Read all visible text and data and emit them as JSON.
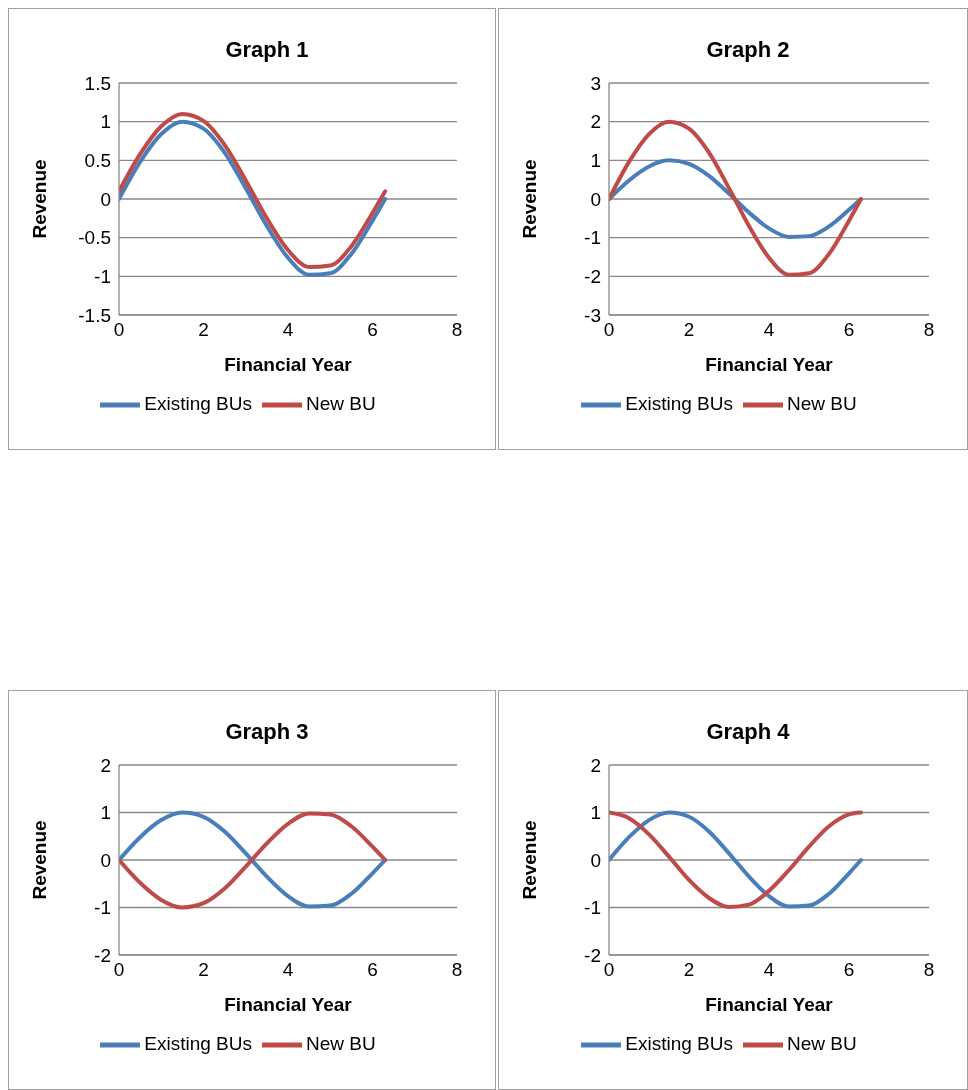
{
  "chart_data": [
    {
      "type": "line",
      "title": "Graph 1",
      "xlabel": "Financial Year",
      "ylabel": "Revenue",
      "x": [
        0,
        0.5,
        1,
        1.5,
        2,
        2.5,
        3,
        3.5,
        4,
        4.5,
        5,
        5.5,
        6,
        6.3
      ],
      "xlim": [
        0,
        8
      ],
      "xticks": [
        0,
        2,
        4,
        6,
        8
      ],
      "ylim": [
        -1.5,
        1.5
      ],
      "yticks": [
        -1.5,
        -1,
        -0.5,
        0,
        0.5,
        1,
        1.5
      ],
      "grid": "y",
      "legend": "bottom",
      "marker": "none",
      "line_style": "solid",
      "series": [
        {
          "name": "Existing BUs",
          "color": "#4a7ebb",
          "values": [
            0,
            0.48,
            0.84,
            1.0,
            0.91,
            0.6,
            0.14,
            -0.35,
            -0.76,
            -0.98,
            -0.96,
            -0.71,
            -0.28,
            0
          ]
        },
        {
          "name": "New BU",
          "color": "#be4b48",
          "values": [
            0.1,
            0.58,
            0.94,
            1.1,
            1.01,
            0.7,
            0.24,
            -0.25,
            -0.66,
            -0.88,
            -0.86,
            -0.61,
            -0.18,
            0.1
          ]
        }
      ]
    },
    {
      "type": "line",
      "title": "Graph 2",
      "xlabel": "Financial Year",
      "ylabel": "Revenue",
      "x": [
        0,
        0.5,
        1,
        1.5,
        2,
        2.5,
        3,
        3.5,
        4,
        4.5,
        5,
        5.5,
        6,
        6.3
      ],
      "xlim": [
        0,
        8
      ],
      "xticks": [
        0,
        2,
        4,
        6,
        8
      ],
      "ylim": [
        -3,
        3
      ],
      "yticks": [
        -3,
        -2,
        -1,
        0,
        1,
        2,
        3
      ],
      "grid": "y",
      "legend": "bottom",
      "marker": "none",
      "line_style": "solid",
      "series": [
        {
          "name": "Existing BUs",
          "color": "#4a7ebb",
          "values": [
            0,
            0.48,
            0.84,
            1.0,
            0.91,
            0.6,
            0.14,
            -0.35,
            -0.76,
            -0.98,
            -0.96,
            -0.71,
            -0.28,
            0
          ]
        },
        {
          "name": "New BU",
          "color": "#be4b48",
          "values": [
            0,
            0.96,
            1.68,
            2.0,
            1.82,
            1.2,
            0.28,
            -0.7,
            -1.52,
            -1.96,
            -1.92,
            -1.42,
            -0.56,
            0
          ]
        }
      ]
    },
    {
      "type": "line",
      "title": "Graph 3",
      "xlabel": "Financial Year",
      "ylabel": "Revenue",
      "x": [
        0,
        0.5,
        1,
        1.5,
        2,
        2.5,
        3,
        3.5,
        4,
        4.5,
        5,
        5.5,
        6,
        6.3
      ],
      "xlim": [
        0,
        8
      ],
      "xticks": [
        0,
        2,
        4,
        6,
        8
      ],
      "ylim": [
        -2,
        2
      ],
      "yticks": [
        -2,
        -1,
        0,
        1,
        2
      ],
      "grid": "y",
      "legend": "bottom",
      "marker": "none",
      "line_style": "solid",
      "series": [
        {
          "name": "Existing BUs",
          "color": "#4a7ebb",
          "values": [
            0,
            0.48,
            0.84,
            1.0,
            0.91,
            0.6,
            0.14,
            -0.35,
            -0.76,
            -0.98,
            -0.96,
            -0.71,
            -0.28,
            0
          ]
        },
        {
          "name": "New BU",
          "color": "#be4b48",
          "values": [
            0,
            -0.48,
            -0.84,
            -1.0,
            -0.91,
            -0.6,
            -0.14,
            0.35,
            0.76,
            0.98,
            0.96,
            0.71,
            0.28,
            0
          ]
        }
      ]
    },
    {
      "type": "line",
      "title": "Graph 4",
      "xlabel": "Financial Year",
      "ylabel": "Revenue",
      "x": [
        0,
        0.5,
        1,
        1.5,
        2,
        2.5,
        3,
        3.5,
        4,
        4.5,
        5,
        5.5,
        6,
        6.3
      ],
      "xlim": [
        0,
        8
      ],
      "xticks": [
        0,
        2,
        4,
        6,
        8
      ],
      "ylim": [
        -2,
        2
      ],
      "yticks": [
        -2,
        -1,
        0,
        1,
        2
      ],
      "grid": "y",
      "legend": "bottom",
      "marker": "none",
      "line_style": "solid",
      "series": [
        {
          "name": "Existing BUs",
          "color": "#4a7ebb",
          "values": [
            0,
            0.48,
            0.84,
            1.0,
            0.91,
            0.6,
            0.14,
            -0.35,
            -0.76,
            -0.98,
            -0.96,
            -0.71,
            -0.28,
            0
          ]
        },
        {
          "name": "New BU",
          "color": "#be4b48",
          "values": [
            1.0,
            0.88,
            0.54,
            0.07,
            -0.42,
            -0.8,
            -0.99,
            -0.94,
            -0.65,
            -0.21,
            0.28,
            0.71,
            0.96,
            1.0
          ]
        }
      ]
    }
  ]
}
